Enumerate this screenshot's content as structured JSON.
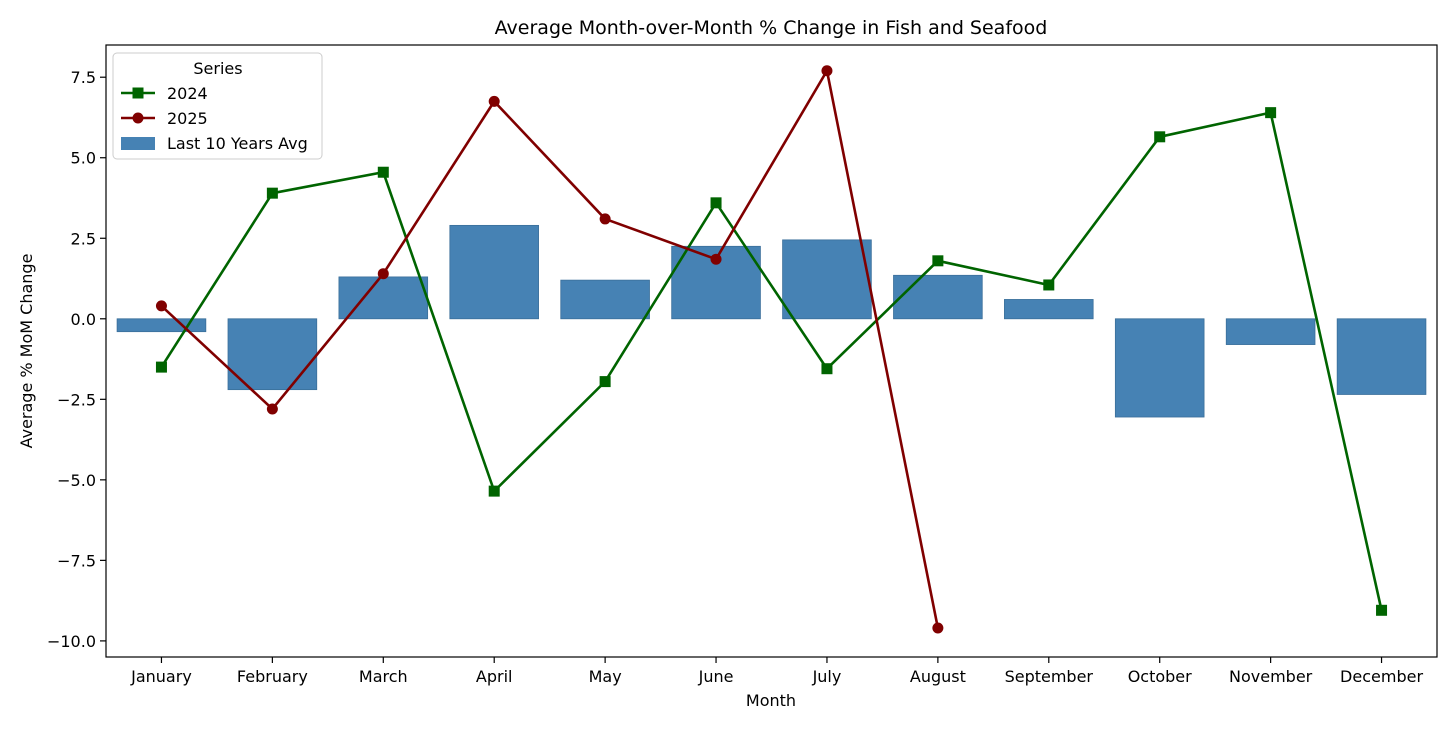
{
  "chart_data": {
    "type": "bar",
    "title": "Average Month-over-Month % Change in Fish and Seafood",
    "xlabel": "Month",
    "ylabel": "Average % MoM Change",
    "ylim": [
      -10.5,
      8.5
    ],
    "yticks": [
      7.5,
      5.0,
      2.5,
      0.0,
      -2.5,
      -5.0,
      -7.5,
      -10.0
    ],
    "ytick_labels": [
      "7.5",
      "5.0",
      "2.5",
      "0.0",
      "−2.5",
      "−5.0",
      "−7.5",
      "−10.0"
    ],
    "grid": false,
    "legend_title": "Series",
    "legend_position": "top-left",
    "categories": [
      "January",
      "February",
      "March",
      "April",
      "May",
      "June",
      "July",
      "August",
      "September",
      "October",
      "November",
      "December"
    ],
    "bars": {
      "name": "Last 10 Years Avg",
      "color": "#4682b4",
      "values": [
        -0.4,
        -2.2,
        1.3,
        2.9,
        1.2,
        2.25,
        2.45,
        1.35,
        0.6,
        -3.05,
        -0.8,
        -2.35
      ]
    },
    "series": [
      {
        "name": "2024",
        "color": "#006400",
        "marker": "square",
        "values": [
          -1.5,
          3.9,
          4.55,
          -5.35,
          -1.95,
          3.6,
          -1.55,
          1.8,
          1.05,
          5.65,
          6.4,
          -9.05
        ]
      },
      {
        "name": "2025",
        "color": "#800000",
        "marker": "circle",
        "values": [
          0.4,
          -2.8,
          1.4,
          6.75,
          3.1,
          1.85,
          7.7,
          -9.6,
          null,
          null,
          null,
          null
        ]
      }
    ]
  }
}
